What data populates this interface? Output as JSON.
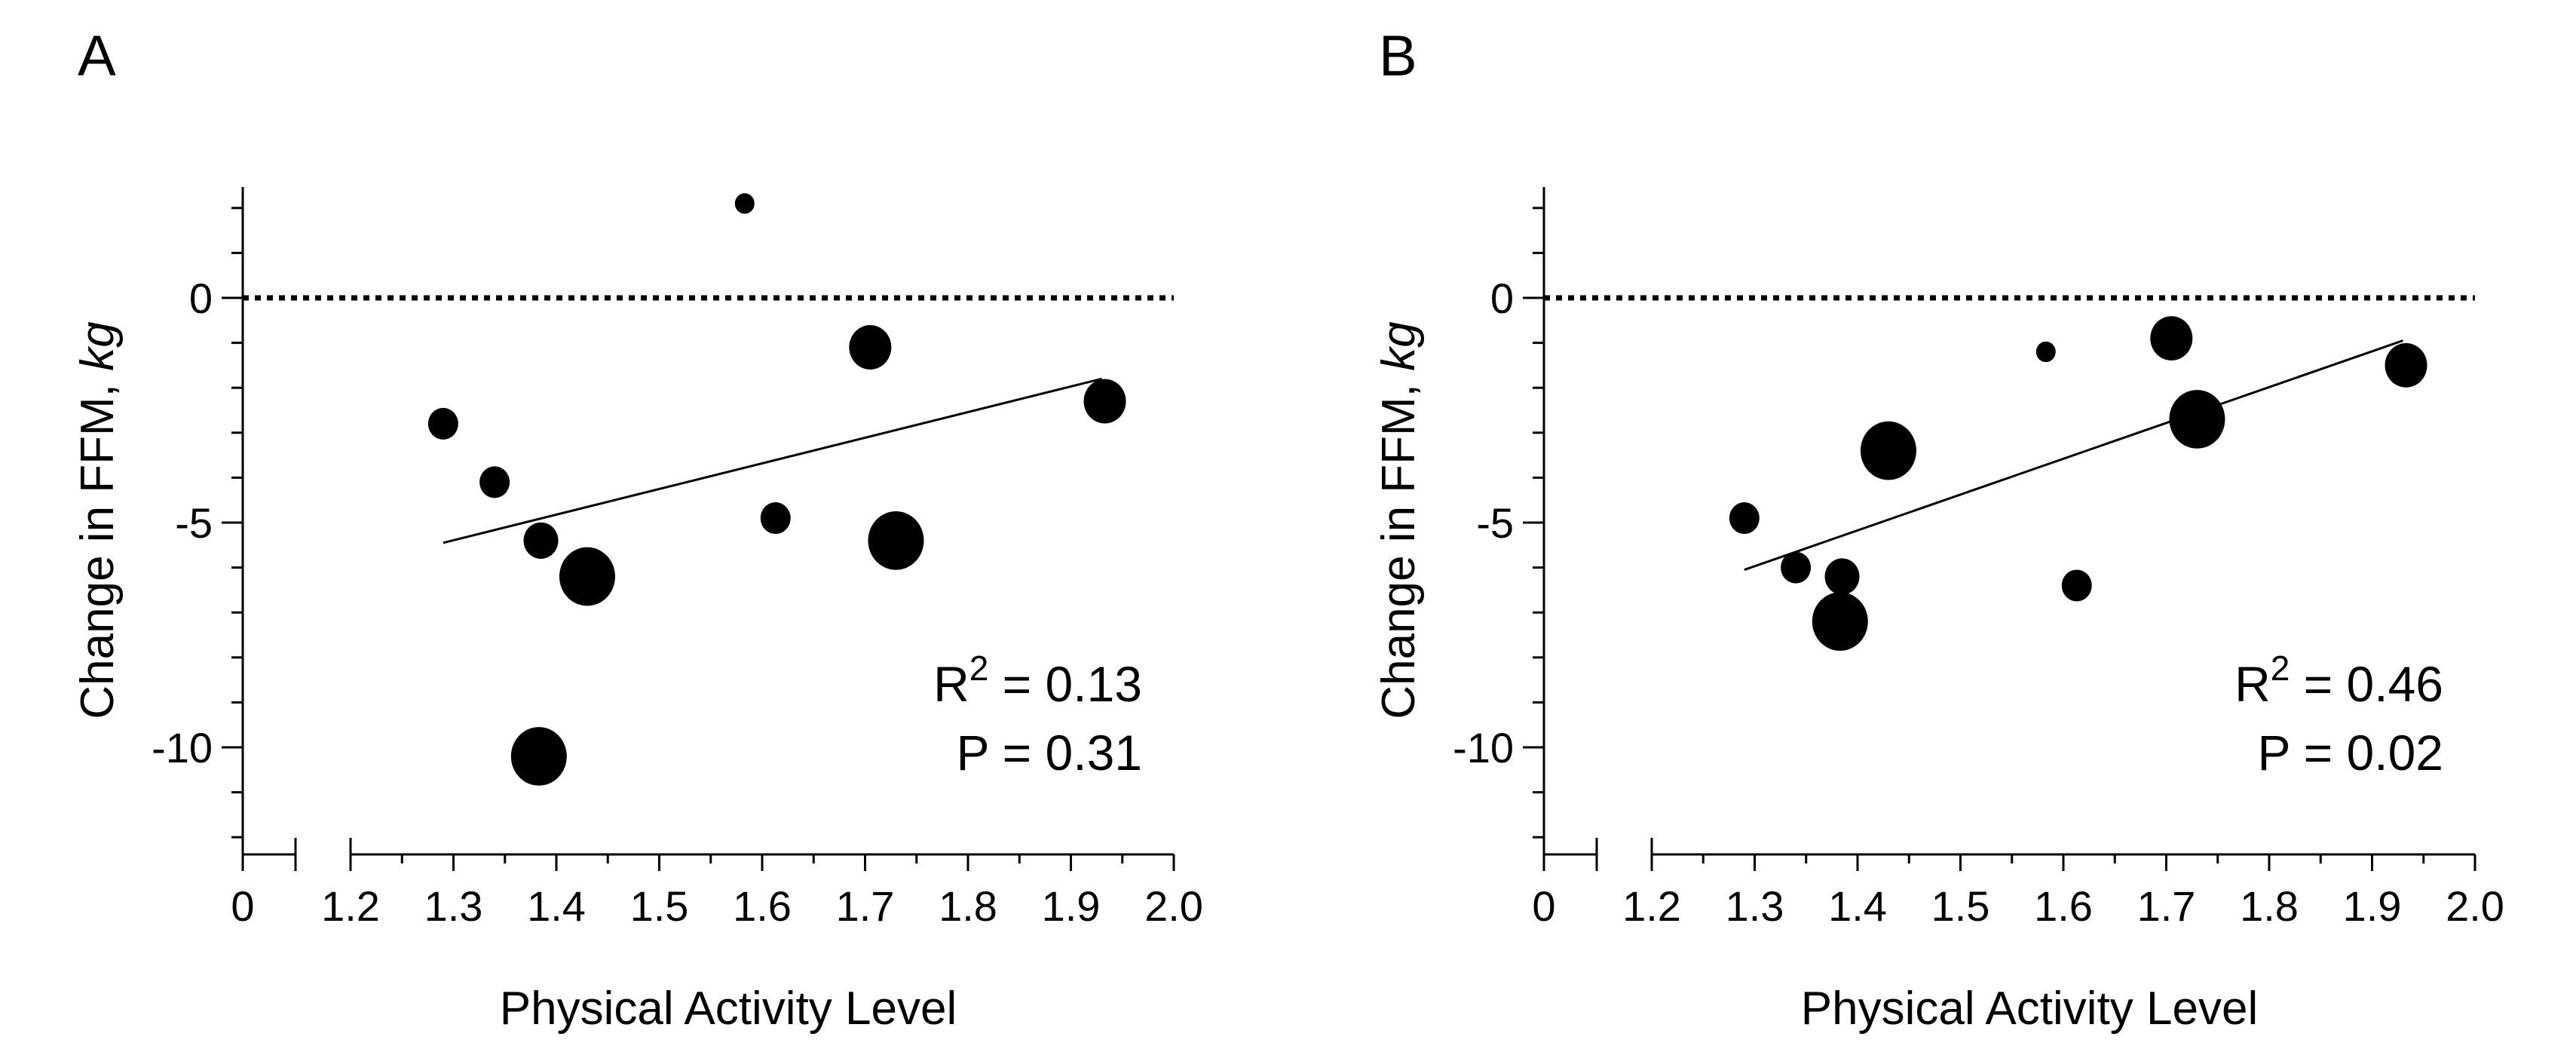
{
  "chart_data": [
    {
      "type": "scatter",
      "panel": "A",
      "xlabel": "Physical Activity Level",
      "ylabel": "Change in FFM, ",
      "ylabel_italic": "kg",
      "x_break": {
        "zero_label": "0"
      },
      "xlim": [
        1.2,
        2.0
      ],
      "ylim": [
        -12.5,
        2.5
      ],
      "x_ticks": [
        1.2,
        1.3,
        1.4,
        1.5,
        1.6,
        1.7,
        1.8,
        1.9,
        2.0
      ],
      "x_tick_labels": [
        "1.2",
        "1.3",
        "1.4",
        "1.5",
        "1.6",
        "1.7",
        "1.8",
        "1.9",
        "2.0"
      ],
      "y_major_ticks": [
        0,
        -5,
        -10
      ],
      "y_tick_labels": [
        "0",
        "-5",
        "-10"
      ],
      "reference_line_y": 0,
      "points": [
        {
          "x": 1.29,
          "y": -2.8,
          "size": 1
        },
        {
          "x": 1.34,
          "y": -4.1,
          "size": 1
        },
        {
          "x": 1.385,
          "y": -5.4,
          "size": 2
        },
        {
          "x": 1.43,
          "y": -6.2,
          "size": 4
        },
        {
          "x": 1.383,
          "y": -10.2,
          "size": 4
        },
        {
          "x": 1.583,
          "y": 2.1,
          "size": 0
        },
        {
          "x": 1.613,
          "y": -4.9,
          "size": 1
        },
        {
          "x": 1.705,
          "y": -1.1,
          "size": 3
        },
        {
          "x": 1.73,
          "y": -5.4,
          "size": 4
        },
        {
          "x": 1.933,
          "y": -2.3,
          "size": 3
        }
      ],
      "fit_line": {
        "x": [
          1.29,
          1.93
        ],
        "y": [
          -5.45,
          -1.8
        ]
      },
      "r2_prefix": "R",
      "r2_sup": "2",
      "r2_value": " = 0.13",
      "p_text": "P = 0.31"
    },
    {
      "type": "scatter",
      "panel": "B",
      "xlabel": "Physical Activity Level",
      "ylabel": "Change in FFM, ",
      "ylabel_italic": "kg",
      "x_break": {
        "zero_label": "0"
      },
      "xlim": [
        1.2,
        2.0
      ],
      "ylim": [
        -12.5,
        2.5
      ],
      "x_ticks": [
        1.2,
        1.3,
        1.4,
        1.5,
        1.6,
        1.7,
        1.8,
        1.9,
        2.0
      ],
      "x_tick_labels": [
        "1.2",
        "1.3",
        "1.4",
        "1.5",
        "1.6",
        "1.7",
        "1.8",
        "1.9",
        "2.0"
      ],
      "y_major_ticks": [
        0,
        -5,
        -10
      ],
      "y_tick_labels": [
        "0",
        "-5",
        "-10"
      ],
      "reference_line_y": 0,
      "points": [
        {
          "x": 1.29,
          "y": -4.9,
          "size": 1
        },
        {
          "x": 1.34,
          "y": -6.0,
          "size": 1
        },
        {
          "x": 1.385,
          "y": -6.2,
          "size": 2
        },
        {
          "x": 1.383,
          "y": -7.2,
          "size": 4
        },
        {
          "x": 1.43,
          "y": -3.4,
          "size": 4
        },
        {
          "x": 1.583,
          "y": -1.2,
          "size": 0
        },
        {
          "x": 1.613,
          "y": -6.4,
          "size": 1
        },
        {
          "x": 1.705,
          "y": -0.9,
          "size": 3
        },
        {
          "x": 1.73,
          "y": -2.7,
          "size": 4
        },
        {
          "x": 1.933,
          "y": -1.5,
          "size": 3
        }
      ],
      "fit_line": {
        "x": [
          1.29,
          1.93
        ],
        "y": [
          -6.05,
          -0.95
        ]
      },
      "r2_prefix": "R",
      "r2_sup": "2",
      "r2_value": " = 0.46",
      "p_text": "P = 0.02"
    }
  ]
}
